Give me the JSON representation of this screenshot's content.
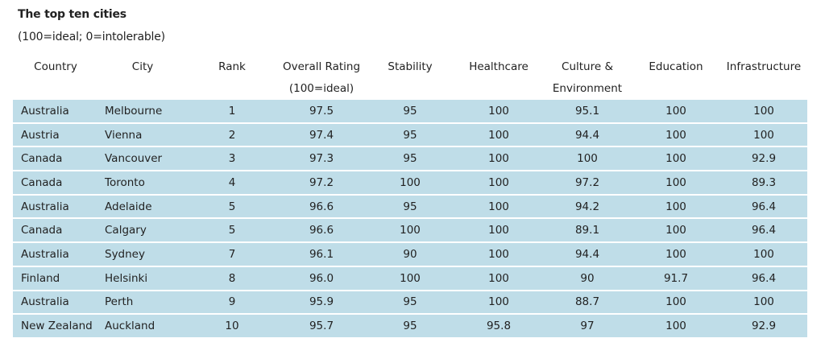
{
  "chart_data": {
    "type": "table",
    "title": "The top ten cities",
    "subtitle": "(100=ideal; 0=intolerable)",
    "columns": [
      {
        "key": "country",
        "label": "Country",
        "label2": ""
      },
      {
        "key": "city",
        "label": "City",
        "label2": ""
      },
      {
        "key": "rank",
        "label": "Rank",
        "label2": ""
      },
      {
        "key": "overall",
        "label": "Overall Rating",
        "label2": "(100=ideal)"
      },
      {
        "key": "stability",
        "label": "Stability",
        "label2": ""
      },
      {
        "key": "healthcare",
        "label": "Healthcare",
        "label2": ""
      },
      {
        "key": "culture",
        "label": "Culture &",
        "label2": "Environment"
      },
      {
        "key": "education",
        "label": "Education",
        "label2": ""
      },
      {
        "key": "infrastructure",
        "label": "Infrastructure",
        "label2": ""
      }
    ],
    "rows": [
      {
        "country": "Australia",
        "city": "Melbourne",
        "rank": "1",
        "overall": "97.5",
        "stability": "95",
        "healthcare": "100",
        "culture": "95.1",
        "education": "100",
        "infrastructure": "100"
      },
      {
        "country": "Austria",
        "city": "Vienna",
        "rank": "2",
        "overall": "97.4",
        "stability": "95",
        "healthcare": "100",
        "culture": "94.4",
        "education": "100",
        "infrastructure": "100"
      },
      {
        "country": "Canada",
        "city": "Vancouver",
        "rank": "3",
        "overall": "97.3",
        "stability": "95",
        "healthcare": "100",
        "culture": "100",
        "education": "100",
        "infrastructure": "92.9"
      },
      {
        "country": "Canada",
        "city": "Toronto",
        "rank": "4",
        "overall": "97.2",
        "stability": "100",
        "healthcare": "100",
        "culture": "97.2",
        "education": "100",
        "infrastructure": "89.3"
      },
      {
        "country": "Australia",
        "city": "Adelaide",
        "rank": "5",
        "overall": "96.6",
        "stability": "95",
        "healthcare": "100",
        "culture": "94.2",
        "education": "100",
        "infrastructure": "96.4"
      },
      {
        "country": "Canada",
        "city": "Calgary",
        "rank": "5",
        "overall": "96.6",
        "stability": "100",
        "healthcare": "100",
        "culture": "89.1",
        "education": "100",
        "infrastructure": "96.4"
      },
      {
        "country": "Australia",
        "city": "Sydney",
        "rank": "7",
        "overall": "96.1",
        "stability": "90",
        "healthcare": "100",
        "culture": "94.4",
        "education": "100",
        "infrastructure": "100"
      },
      {
        "country": "Finland",
        "city": "Helsinki",
        "rank": "8",
        "overall": "96.0",
        "stability": "100",
        "healthcare": "100",
        "culture": "90",
        "education": "91.7",
        "infrastructure": "96.4"
      },
      {
        "country": "Australia",
        "city": "Perth",
        "rank": "9",
        "overall": "95.9",
        "stability": "95",
        "healthcare": "100",
        "culture": "88.7",
        "education": "100",
        "infrastructure": "100"
      },
      {
        "country": "New Zealand",
        "city": "Auckland",
        "rank": "10",
        "overall": "95.7",
        "stability": "95",
        "healthcare": "95.8",
        "culture": "97",
        "education": "100",
        "infrastructure": "92.9"
      }
    ],
    "row_color": "#bfdde8",
    "text_color": "#222222"
  }
}
